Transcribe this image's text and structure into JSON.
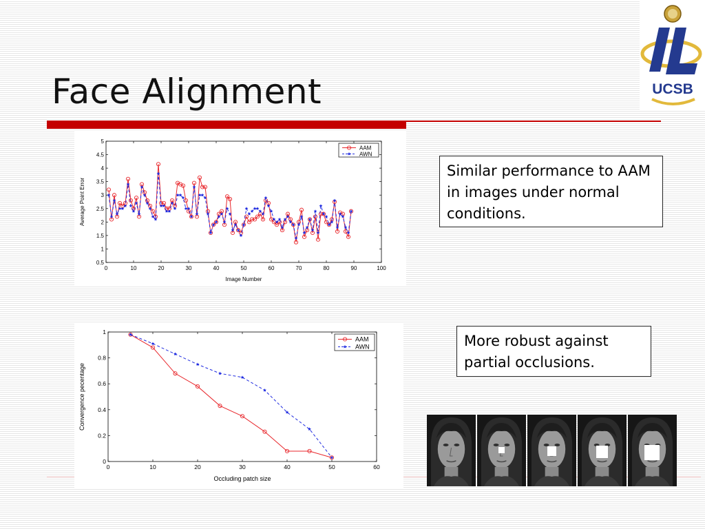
{
  "slide": {
    "title": "Face Alignment",
    "note1": "Similar performance to AAM in images under normal conditions.",
    "note2": "More robust against partial occlusions.",
    "accent_color": "#c40000",
    "logo_text": "UCSB"
  },
  "chart_data": [
    {
      "type": "line",
      "xlabel": "Image Number",
      "ylabel": "Average Point Error",
      "xlim": [
        0,
        100
      ],
      "ylim": [
        0.5,
        5
      ],
      "xticks": [
        0,
        10,
        20,
        30,
        40,
        50,
        60,
        70,
        80,
        90,
        100
      ],
      "yticks": [
        0.5,
        1,
        1.5,
        2,
        2.5,
        3,
        3.5,
        4,
        4.5,
        5
      ],
      "legend_position": "top-right",
      "x": [
        1,
        2,
        3,
        4,
        5,
        6,
        7,
        8,
        9,
        10,
        11,
        12,
        13,
        14,
        15,
        16,
        17,
        18,
        19,
        20,
        21,
        22,
        23,
        24,
        25,
        26,
        27,
        28,
        29,
        30,
        31,
        32,
        33,
        34,
        35,
        36,
        37,
        38,
        39,
        40,
        41,
        42,
        43,
        44,
        45,
        46,
        47,
        48,
        49,
        50,
        51,
        52,
        53,
        54,
        55,
        56,
        57,
        58,
        59,
        60,
        61,
        62,
        63,
        64,
        65,
        66,
        67,
        68,
        69,
        70,
        71,
        72,
        73,
        74,
        75,
        76,
        77,
        78,
        79,
        80,
        81,
        82,
        83,
        84,
        85,
        86,
        87,
        88,
        89
      ],
      "series": [
        {
          "name": "AAM",
          "color": "#e8262b",
          "marker": "circle",
          "dash": "solid",
          "values": [
            3.2,
            2.1,
            3.0,
            2.2,
            2.7,
            2.6,
            2.7,
            3.6,
            2.8,
            2.5,
            2.9,
            2.2,
            3.4,
            3.1,
            2.8,
            2.6,
            2.4,
            2.2,
            4.15,
            2.7,
            2.7,
            2.5,
            2.5,
            2.8,
            2.6,
            3.45,
            3.4,
            3.35,
            2.8,
            2.4,
            2.2,
            3.45,
            2.2,
            3.65,
            3.3,
            3.3,
            2.4,
            1.6,
            1.9,
            2.0,
            2.3,
            2.4,
            1.9,
            2.95,
            2.85,
            1.6,
            2.0,
            1.7,
            1.6,
            1.9,
            2.2,
            2.0,
            2.1,
            2.1,
            2.2,
            2.3,
            2.1,
            2.8,
            2.7,
            2.1,
            2.0,
            1.9,
            2.0,
            1.7,
            2.0,
            2.3,
            2.1,
            1.9,
            1.25,
            2.0,
            2.45,
            1.45,
            1.7,
            2.1,
            1.6,
            2.2,
            1.35,
            2.3,
            2.3,
            2.0,
            1.9,
            2.1,
            2.75,
            1.65,
            2.35,
            2.3,
            1.65,
            1.45,
            2.4
          ]
        },
        {
          "name": "AWN",
          "color": "#1f2be0",
          "marker": "star",
          "dash": "dashed",
          "values": [
            3.0,
            2.2,
            2.8,
            2.3,
            2.5,
            2.5,
            2.6,
            3.4,
            2.6,
            2.4,
            2.7,
            2.3,
            3.3,
            3.0,
            2.7,
            2.5,
            2.2,
            2.1,
            3.8,
            2.6,
            2.6,
            2.4,
            2.4,
            2.7,
            2.5,
            3.0,
            3.0,
            2.9,
            2.5,
            2.5,
            2.2,
            3.3,
            2.3,
            3.0,
            3.0,
            2.9,
            2.3,
            1.6,
            1.9,
            2.0,
            2.2,
            2.3,
            2.0,
            2.5,
            2.3,
            1.7,
            1.9,
            1.7,
            1.5,
            1.9,
            2.5,
            2.3,
            2.4,
            2.5,
            2.5,
            2.4,
            2.3,
            2.9,
            2.6,
            2.4,
            2.1,
            2.0,
            2.1,
            1.8,
            2.1,
            2.2,
            2.0,
            1.9,
            1.4,
            1.9,
            2.2,
            1.6,
            1.8,
            2.1,
            1.7,
            2.4,
            1.6,
            2.6,
            2.3,
            2.2,
            1.9,
            2.0,
            2.8,
            1.8,
            2.3,
            2.2,
            1.8,
            1.6,
            2.4
          ]
        }
      ]
    },
    {
      "type": "line",
      "xlabel": "Occluding patch size",
      "ylabel": "Convergence pecentage",
      "xlim": [
        0,
        60
      ],
      "ylim": [
        0,
        1
      ],
      "xticks": [
        0,
        10,
        20,
        30,
        40,
        50,
        60
      ],
      "yticks": [
        0,
        0.2,
        0.4,
        0.6,
        0.8,
        1
      ],
      "legend_position": "top-right",
      "x": [
        5,
        10,
        15,
        20,
        25,
        30,
        35,
        40,
        45,
        50
      ],
      "series": [
        {
          "name": "AAM",
          "color": "#e8262b",
          "marker": "circle",
          "dash": "solid",
          "values": [
            0.98,
            0.88,
            0.68,
            0.58,
            0.43,
            0.35,
            0.23,
            0.08,
            0.08,
            0.03
          ]
        },
        {
          "name": "AWN",
          "color": "#1f2be0",
          "marker": "star",
          "dash": "dashed",
          "values": [
            0.98,
            0.91,
            0.83,
            0.75,
            0.68,
            0.65,
            0.55,
            0.38,
            0.25,
            0.03
          ]
        }
      ]
    }
  ],
  "faces": [
    {
      "occlusion": 0
    },
    {
      "occlusion": 0.2
    },
    {
      "occlusion": 0.3
    },
    {
      "occlusion": 0.4
    },
    {
      "occlusion": 0.5
    }
  ]
}
